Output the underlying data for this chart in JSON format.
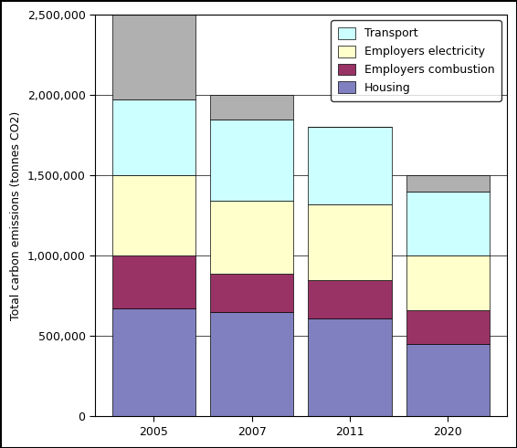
{
  "years": [
    "2005",
    "2007",
    "2011",
    "2020"
  ],
  "housing": [
    670000,
    650000,
    610000,
    450000
  ],
  "employers_combustion": [
    330000,
    240000,
    240000,
    210000
  ],
  "employers_electricity": [
    500000,
    450000,
    470000,
    340000
  ],
  "transport": [
    470000,
    510000,
    480000,
    400000
  ],
  "other": [
    530000,
    150000,
    0,
    100000
  ],
  "colors": {
    "housing": "#8080c0",
    "employers_combustion": "#993366",
    "employers_electricity": "#ffffcc",
    "transport": "#ccffff",
    "other": "#b0b0b0"
  },
  "legend_labels": [
    "Transport",
    "Employers electricity",
    "Employers combustion",
    "Housing"
  ],
  "ylabel": "Total carbon emissions (tonnes CO2)",
  "ylim": [
    0,
    2500000
  ],
  "yticks": [
    0,
    500000,
    1000000,
    1500000,
    2000000,
    2500000
  ],
  "bar_width": 0.85,
  "figsize": [
    5.66,
    4.91
  ],
  "dpi": 100
}
